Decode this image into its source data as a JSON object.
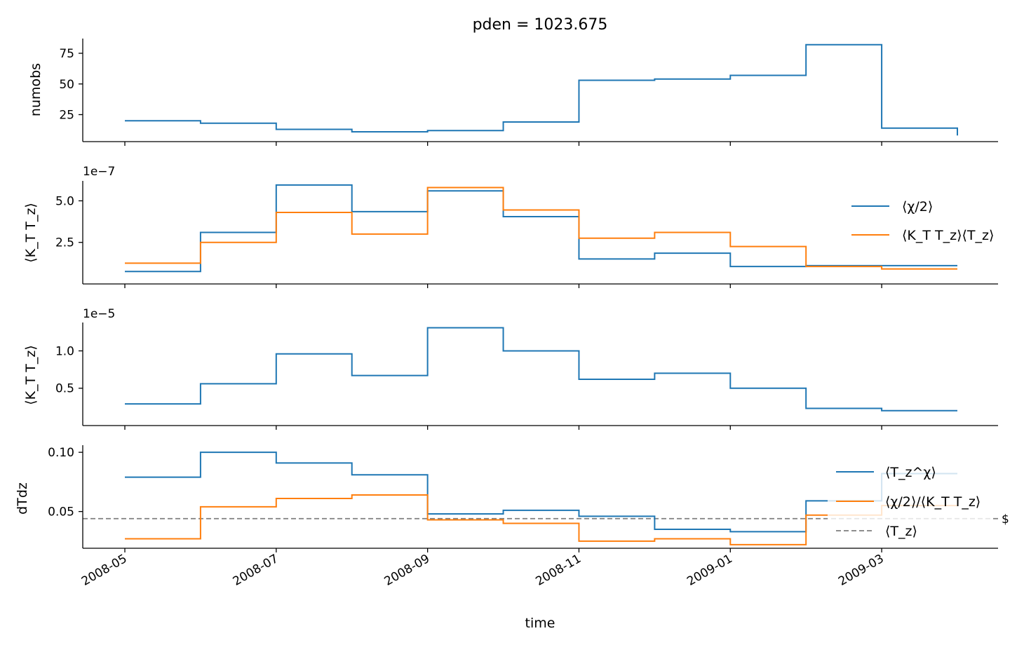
{
  "figure": {
    "title": "pden = 1023.675",
    "xlabel": "time",
    "xticks": [
      "2008-05",
      "2008-07",
      "2008-09",
      "2008-11",
      "2009-01",
      "2009-03"
    ],
    "edge_label": "$"
  },
  "chart_data": [
    {
      "type": "line",
      "ylabel": "numobs",
      "ylim": [
        3,
        87
      ],
      "yticks": [
        "25",
        "50",
        "75"
      ],
      "x": [
        "2008-05",
        "2008-06",
        "2008-07",
        "2008-08",
        "2008-09",
        "2008-10",
        "2008-11",
        "2008-12",
        "2009-01",
        "2009-02",
        "2009-03",
        "2009-04"
      ],
      "series": [
        {
          "color": "#1f77b4",
          "values": [
            20,
            18,
            13,
            11,
            12,
            19,
            53,
            54,
            57,
            82,
            14,
            8
          ]
        }
      ]
    },
    {
      "type": "line",
      "ylabel": "⟨K_T T_z⟩",
      "scale_label": "1e−7",
      "ylim": [
        0.0,
        6.2
      ],
      "yticks": [
        "2.5",
        "5.0"
      ],
      "x": [
        "2008-05",
        "2008-06",
        "2008-07",
        "2008-08",
        "2008-09",
        "2008-10",
        "2008-11",
        "2008-12",
        "2009-01",
        "2009-02",
        "2009-03",
        "2009-04"
      ],
      "series": [
        {
          "name": "⟨χ/2⟩",
          "color": "#1f77b4",
          "values": [
            0.75,
            3.1,
            5.95,
            4.35,
            5.6,
            4.05,
            1.5,
            1.85,
            1.05,
            1.1,
            1.1,
            1.1
          ]
        },
        {
          "name": "⟨K_T T_z⟩⟨T_z⟩",
          "color": "#ff7f0e",
          "values": [
            1.25,
            2.5,
            4.3,
            3.0,
            5.8,
            4.45,
            2.75,
            3.1,
            2.25,
            1.05,
            0.9,
            0.9
          ]
        }
      ]
    },
    {
      "type": "line",
      "ylabel": "⟨K_T T_z⟩",
      "scale_label": "1e−5",
      "ylim": [
        0.0,
        1.38
      ],
      "yticks": [
        "0.5",
        "1.0"
      ],
      "x": [
        "2008-05",
        "2008-06",
        "2008-07",
        "2008-08",
        "2008-09",
        "2008-10",
        "2008-11",
        "2008-12",
        "2009-01",
        "2009-02",
        "2009-03",
        "2009-04"
      ],
      "series": [
        {
          "color": "#1f77b4",
          "values": [
            0.29,
            0.56,
            0.96,
            0.67,
            1.31,
            1.0,
            0.62,
            0.7,
            0.5,
            0.23,
            0.2,
            0.2
          ]
        }
      ]
    },
    {
      "type": "line",
      "ylabel": "dTdz",
      "ylim": [
        0.019,
        0.106
      ],
      "yticks": [
        "0.05",
        "0.10"
      ],
      "x": [
        "2008-05",
        "2008-06",
        "2008-07",
        "2008-08",
        "2008-09",
        "2008-10",
        "2008-11",
        "2008-12",
        "2009-01",
        "2009-02",
        "2009-03",
        "2009-04"
      ],
      "series": [
        {
          "name": "⟨T_z^χ⟩",
          "color": "#1f77b4",
          "values": [
            0.079,
            0.1,
            0.091,
            0.081,
            0.048,
            0.051,
            0.046,
            0.035,
            0.033,
            0.059,
            0.082,
            0.082
          ]
        },
        {
          "name": "⟨χ/2⟩/⟨K_T T_z⟩",
          "color": "#ff7f0e",
          "values": [
            0.027,
            0.054,
            0.061,
            0.064,
            0.043,
            0.04,
            0.025,
            0.027,
            0.022,
            0.047,
            0.055,
            0.055
          ]
        }
      ],
      "hline": {
        "name": "⟨T_z⟩",
        "color": "#7f7f7f",
        "value": 0.044
      }
    }
  ]
}
